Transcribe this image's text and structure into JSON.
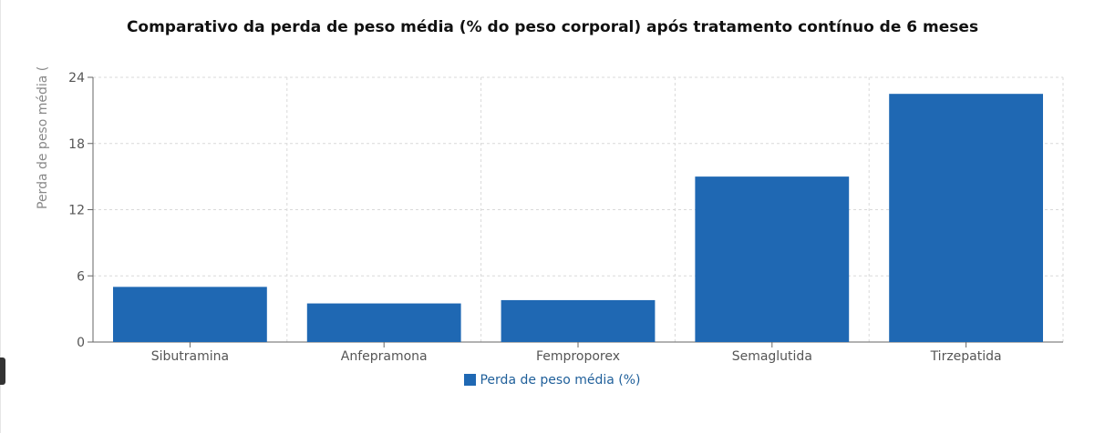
{
  "chart_data": {
    "type": "bar",
    "title": "Comparativo da perda de peso média (% do peso corporal) após tratamento contínuo de 6 meses",
    "ylabel": "Perda de peso média (",
    "xlabel": "",
    "categories": [
      "Sibutramina",
      "Anfepramona",
      "Femproporex",
      "Semaglutida",
      "Tirzepatida"
    ],
    "series": [
      {
        "name": "Perda de peso média (%)",
        "values": [
          5,
          3.5,
          3.8,
          15,
          22.5
        ]
      }
    ],
    "ylim": [
      0,
      24
    ],
    "yticks": [
      "0",
      "6",
      "12",
      "18",
      "24"
    ],
    "grid": true,
    "legend_position": "bottom",
    "bar_color": "#1f68b3"
  }
}
